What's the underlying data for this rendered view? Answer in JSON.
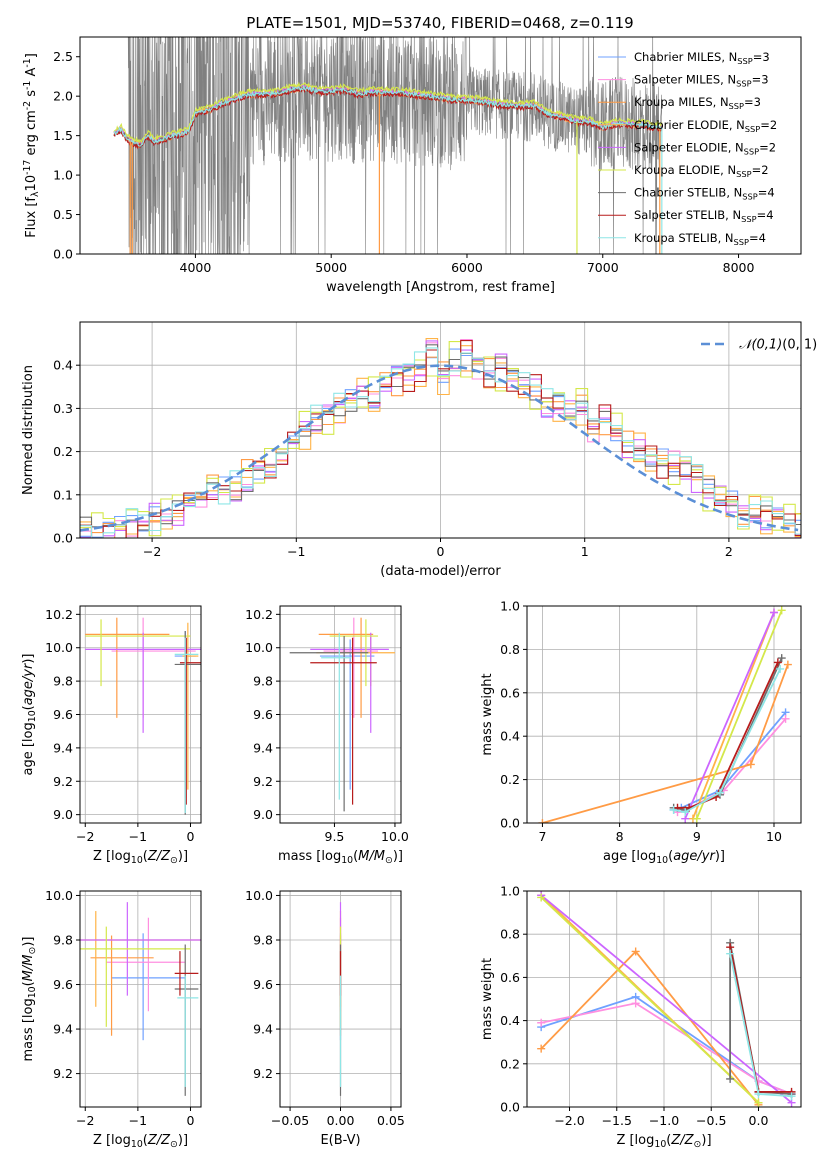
{
  "figure": {
    "title": "PLATE=1501, MJD=53740, FIBERID=0468, z=0.119"
  },
  "model_colors": [
    "#6fa1ff",
    "#ff8fe0",
    "#ff9b45",
    "#ffb347",
    "#cc66ff",
    "#d4e84a",
    "#6e6e6e",
    "#b71c1c",
    "#8ee6e6"
  ],
  "model_labels": [
    "Chabrier MILES, N$_{SSP}$=3",
    "Salpeter MILES, N$_{SSP}$=3",
    "Kroupa MILES, N$_{SSP}$=3",
    "Chabrier ELODIE, N$_{SSP}$=2",
    "Salpeter ELODIE, N$_{SSP}$=2",
    "Kroupa ELODIE, N$_{SSP}$=2",
    "Chabrier STELIB, N$_{SSP}$=4",
    "Salpeter STELIB, N$_{SSP}$=4",
    "Kroupa STELIB, N$_{SSP}$=4"
  ],
  "chart_data": [
    {
      "id": "spectrum",
      "type": "line",
      "xlabel": "wavelength [Angstrom, rest frame]",
      "ylabel": "Flux [f$_\\lambda$10$^{-17}$ erg cm$^{-2}$ s$^{-1}$ A$^{-1}$]",
      "xlim": [
        3150,
        8460
      ],
      "ylim": [
        0,
        2.75
      ],
      "xticks": [
        4000,
        5000,
        6000,
        7000,
        8000
      ],
      "yticks": [
        0.0,
        0.5,
        1.0,
        1.5,
        2.0,
        2.5
      ],
      "grid": false,
      "legend_position": "top-right",
      "series": [
        {
          "name": "Chabrier MILES, N$_{SSP}$=3"
        },
        {
          "name": "Salpeter MILES, N$_{SSP}$=3"
        },
        {
          "name": "Kroupa MILES, N$_{SSP}$=3"
        },
        {
          "name": "Chabrier ELODIE, N$_{SSP}$=2"
        },
        {
          "name": "Salpeter ELODIE, N$_{SSP}$=2"
        },
        {
          "name": "Kroupa ELODIE, N$_{SSP}$=2"
        },
        {
          "name": "Chabrier STELIB, N$_{SSP}$=4"
        },
        {
          "name": "Salpeter STELIB, N$_{SSP}$=4"
        },
        {
          "name": "Kroupa STELIB, N$_{SSP}$=4"
        }
      ],
      "model_curve": {
        "x": [
          3400,
          3450,
          3500,
          3550,
          3600,
          3650,
          3700,
          3750,
          3800,
          3850,
          3900,
          3950,
          4000,
          4100,
          4200,
          4300,
          4400,
          4500,
          4600,
          4700,
          4800,
          4900,
          5000,
          5100,
          5200,
          5300,
          5400,
          5500,
          5600,
          5700,
          5800,
          5900,
          6000,
          6100,
          6200,
          6300,
          6400,
          6500,
          6600,
          6700,
          6800,
          6900,
          7000,
          7100,
          7200,
          7300,
          7400
        ],
        "y": [
          1.52,
          1.58,
          1.45,
          1.4,
          1.38,
          1.5,
          1.42,
          1.45,
          1.47,
          1.5,
          1.52,
          1.55,
          1.78,
          1.82,
          1.9,
          1.97,
          2.02,
          2.02,
          2.03,
          2.08,
          2.1,
          2.06,
          2.06,
          2.08,
          2.02,
          2.05,
          2.04,
          2.04,
          2.02,
          2.0,
          1.98,
          1.95,
          1.95,
          1.93,
          1.9,
          1.88,
          1.87,
          1.88,
          1.77,
          1.73,
          1.68,
          1.67,
          1.6,
          1.65,
          1.64,
          1.63,
          1.6
        ]
      },
      "observed_spectrum": {
        "x_range": [
          3500,
          7440
        ],
        "baseline": "model_curve",
        "noisy_below_angstrom": 4400,
        "high_noise_ceiling": 2.75
      }
    },
    {
      "id": "residuals",
      "type": "step",
      "xlabel": "(data-model)/error",
      "ylabel": "Normed distribution",
      "xlim": [
        -2.5,
        2.5
      ],
      "ylim": [
        0,
        0.5
      ],
      "xticks": [
        -2,
        -1,
        0,
        1,
        2
      ],
      "yticks": [
        0.0,
        0.1,
        0.2,
        0.3,
        0.4
      ],
      "grid": true,
      "legend_position": "top-right",
      "reference": {
        "name": "$\\mathcal{N}(0,1)$",
        "style": "dashed",
        "color": "#5b8fd6"
      },
      "bin_width": 0.1,
      "base_values": [
        0.02,
        0.021,
        0.025,
        0.03,
        0.035,
        0.035,
        0.045,
        0.055,
        0.065,
        0.075,
        0.09,
        0.11,
        0.115,
        0.12,
        0.14,
        0.15,
        0.16,
        0.2,
        0.22,
        0.25,
        0.28,
        0.29,
        0.3,
        0.32,
        0.34,
        0.33,
        0.36,
        0.37,
        0.38,
        0.4,
        0.42,
        0.38,
        0.41,
        0.42,
        0.4,
        0.38,
        0.39,
        0.37,
        0.35,
        0.34,
        0.31,
        0.32,
        0.28,
        0.3,
        0.26,
        0.27,
        0.25,
        0.22,
        0.21,
        0.2,
        0.18,
        0.17,
        0.16,
        0.14,
        0.11,
        0.1,
        0.08,
        0.06,
        0.06,
        0.05,
        0.06,
        0.04,
        0.03
      ]
    },
    {
      "id": "age_vs_Z",
      "type": "errorbar",
      "xlabel": "Z [log$_{10}$($Z/Z_\\odot$)]",
      "ylabel": "age  [log$_{10}$($age/yr$)]",
      "xlim": [
        -2.1,
        0.2
      ],
      "ylim": [
        8.95,
        10.25
      ],
      "xticks": [
        -2,
        -1,
        0
      ],
      "yticks": [
        9.0,
        9.2,
        9.4,
        9.6,
        9.8,
        10.0,
        10.2
      ],
      "grid": true,
      "points": [
        {
          "series": 0,
          "x": -0.1,
          "y": 9.95,
          "xerr": [
            0.2,
            0.2
          ],
          "yerr": [
            0.85,
            0.15
          ]
        },
        {
          "series": 1,
          "x": -0.9,
          "y": 9.98,
          "xerr": [
            0.6,
            1.0
          ],
          "yerr": [
            0.4,
            0.2
          ]
        },
        {
          "series": 2,
          "x": -1.4,
          "y": 10.08,
          "xerr": [
            0.6,
            1.0
          ],
          "yerr": [
            0.5,
            0.1
          ]
        },
        {
          "series": 3,
          "x": -0.05,
          "y": 9.95,
          "xerr": [
            0.1,
            0.2
          ],
          "yerr": [
            0.8,
            0.2
          ]
        },
        {
          "series": 4,
          "x": -0.9,
          "y": 9.99,
          "xerr": [
            1.1,
            1.2
          ],
          "yerr": [
            0.5,
            0.1
          ]
        },
        {
          "series": 5,
          "x": -1.7,
          "y": 10.07,
          "xerr": [
            0.3,
            1.7
          ],
          "yerr": [
            0.3,
            0.1
          ]
        },
        {
          "series": 6,
          "x": -0.1,
          "y": 9.9,
          "xerr": [
            0.2,
            0.3
          ],
          "yerr": [
            0.9,
            0.2
          ]
        },
        {
          "series": 7,
          "x": -0.08,
          "y": 9.91,
          "xerr": [
            0.12,
            0.3
          ],
          "yerr": [
            0.85,
            0.15
          ]
        },
        {
          "series": 8,
          "x": -0.1,
          "y": 9.96,
          "xerr": [
            0.2,
            0.25
          ],
          "yerr": [
            0.95,
            0.1
          ]
        }
      ]
    },
    {
      "id": "age_vs_mass",
      "type": "errorbar",
      "xlabel": "mass [log$_{10}$($M/M_\\odot$)]",
      "ylabel": "",
      "xlim": [
        9.05,
        10.05
      ],
      "ylim": [
        8.95,
        10.25
      ],
      "xticks": [
        9.5,
        10.0
      ],
      "yticks": [
        9.0,
        9.2,
        9.4,
        9.6,
        9.8,
        10.0,
        10.2
      ],
      "grid": true,
      "points": [
        {
          "series": 0,
          "x": 9.63,
          "y": 9.95,
          "xerr": [
            0.25,
            0.2
          ],
          "yerr": [
            0.8,
            0.1
          ]
        },
        {
          "series": 1,
          "x": 9.66,
          "y": 9.98,
          "xerr": [
            0.25,
            0.2
          ],
          "yerr": [
            0.4,
            0.2
          ]
        },
        {
          "series": 2,
          "x": 9.72,
          "y": 10.08,
          "xerr": [
            0.35,
            0.1
          ],
          "yerr": [
            0.5,
            0.1
          ]
        },
        {
          "series": 3,
          "x": 9.8,
          "y": 9.97,
          "xerr": [
            0.45,
            0.2
          ],
          "yerr": [
            0.2,
            0.1
          ]
        },
        {
          "series": 4,
          "x": 9.8,
          "y": 9.99,
          "xerr": [
            0.5,
            0.15
          ],
          "yerr": [
            0.5,
            0.1
          ]
        },
        {
          "series": 5,
          "x": 9.76,
          "y": 10.07,
          "xerr": [
            0.3,
            0.1
          ],
          "yerr": [
            0.3,
            0.1
          ]
        },
        {
          "series": 6,
          "x": 9.58,
          "y": 9.97,
          "xerr": [
            0.45,
            0.2
          ],
          "yerr": [
            0.95,
            0.1
          ]
        },
        {
          "series": 7,
          "x": 9.65,
          "y": 9.91,
          "xerr": [
            0.35,
            0.2
          ],
          "yerr": [
            0.85,
            0.15
          ]
        },
        {
          "series": 8,
          "x": 9.54,
          "y": 9.94,
          "xerr": [
            0.15,
            0.1
          ],
          "yerr": [
            0.85,
            0.15
          ]
        }
      ]
    },
    {
      "id": "weight_vs_age",
      "type": "line",
      "xlabel": "age  [log$_{10}$($age/yr$)]",
      "ylabel": "mass weight",
      "xlim": [
        6.8,
        10.35
      ],
      "ylim": [
        0,
        1.0
      ],
      "xticks": [
        7,
        8,
        9,
        10
      ],
      "yticks": [
        0.0,
        0.2,
        0.4,
        0.6,
        0.8,
        1.0
      ],
      "grid": true,
      "series": [
        {
          "series": 0,
          "x": [
            8.7,
            8.8,
            9.3,
            10.15
          ],
          "y": [
            0.06,
            0.07,
            0.15,
            0.51
          ]
        },
        {
          "series": 1,
          "x": [
            8.75,
            8.85,
            9.35,
            10.15
          ],
          "y": [
            0.05,
            0.06,
            0.15,
            0.48
          ]
        },
        {
          "series": 2,
          "x": [
            7.0,
            9.7,
            10.18
          ],
          "y": [
            0.0,
            0.27,
            0.73
          ]
        },
        {
          "series": 3,
          "x": [
            8.95,
            10.0
          ],
          "y": [
            0.02,
            0.97
          ]
        },
        {
          "series": 4,
          "x": [
            8.85,
            10.0
          ],
          "y": [
            0.02,
            0.97
          ]
        },
        {
          "series": 5,
          "x": [
            9.0,
            10.1
          ],
          "y": [
            0.02,
            0.98
          ]
        },
        {
          "series": 6,
          "x": [
            8.7,
            8.85,
            9.3,
            10.1
          ],
          "y": [
            0.07,
            0.06,
            0.13,
            0.76
          ]
        },
        {
          "series": 7,
          "x": [
            8.75,
            8.9,
            9.25,
            10.05
          ],
          "y": [
            0.07,
            0.07,
            0.12,
            0.74
          ]
        },
        {
          "series": 8,
          "x": [
            8.7,
            8.85,
            9.3,
            10.08
          ],
          "y": [
            0.06,
            0.05,
            0.14,
            0.71
          ]
        }
      ]
    },
    {
      "id": "mass_vs_Z",
      "type": "errorbar",
      "xlabel": "Z [log$_{10}$($Z/Z_\\odot$)]",
      "ylabel": "mass [log$_{10}$($M/M_\\odot$)]",
      "xlim": [
        -2.1,
        0.2
      ],
      "ylim": [
        9.05,
        10.02
      ],
      "xticks": [
        -2,
        -1,
        0
      ],
      "yticks": [
        9.2,
        9.4,
        9.6,
        9.8,
        10.0
      ],
      "grid": true,
      "points": [
        {
          "series": 0,
          "x": -0.9,
          "y": 9.63,
          "xerr": [
            0.6,
            0.8
          ],
          "yerr": [
            0.28,
            0.2
          ]
        },
        {
          "series": 1,
          "x": -0.8,
          "y": 9.7,
          "xerr": [
            0.8,
            0.7
          ],
          "yerr": [
            0.22,
            0.2
          ]
        },
        {
          "series": 2,
          "x": -1.5,
          "y": 9.72,
          "xerr": [
            0.4,
            0.8
          ],
          "yerr": [
            0.35,
            0.1
          ]
        },
        {
          "series": 3,
          "x": -1.8,
          "y": 9.8,
          "xerr": [
            0.3,
            2.0
          ],
          "yerr": [
            0.3,
            0.13
          ]
        },
        {
          "series": 4,
          "x": -1.2,
          "y": 9.8,
          "xerr": [
            0.9,
            1.4
          ],
          "yerr": [
            0.25,
            0.17
          ]
        },
        {
          "series": 5,
          "x": -1.6,
          "y": 9.76,
          "xerr": [
            0.5,
            1.6
          ],
          "yerr": [
            0.35,
            0.1
          ]
        },
        {
          "series": 6,
          "x": -0.1,
          "y": 9.58,
          "xerr": [
            0.2,
            0.25
          ],
          "yerr": [
            0.48,
            0.2
          ]
        },
        {
          "series": 7,
          "x": -0.2,
          "y": 9.65,
          "xerr": [
            0.1,
            0.35
          ],
          "yerr": [
            0.1,
            0.1
          ]
        },
        {
          "series": 8,
          "x": -0.1,
          "y": 9.54,
          "xerr": [
            0.15,
            0.25
          ],
          "yerr": [
            0.4,
            0.1
          ]
        }
      ]
    },
    {
      "id": "mass_vs_EBV",
      "type": "errorbar",
      "xlabel": "E(B-V)",
      "ylabel": "",
      "xlim": [
        -0.06,
        0.06
      ],
      "ylim": [
        9.05,
        10.02
      ],
      "xticks": [
        -0.05,
        0.0,
        0.05
      ],
      "yticks": [
        9.2,
        9.4,
        9.6,
        9.8,
        10.0
      ],
      "grid": true,
      "points": [
        {
          "series": 0,
          "x": 0.0,
          "y": 9.63,
          "xerr": [
            0,
            0
          ],
          "yerr": [
            0.28,
            0.2
          ]
        },
        {
          "series": 1,
          "x": 0.0,
          "y": 9.7,
          "xerr": [
            0,
            0
          ],
          "yerr": [
            0.22,
            0.2
          ]
        },
        {
          "series": 2,
          "x": 0.0,
          "y": 9.72,
          "xerr": [
            0,
            0
          ],
          "yerr": [
            0.35,
            0.1
          ]
        },
        {
          "series": 3,
          "x": 0.0,
          "y": 9.8,
          "xerr": [
            0,
            0
          ],
          "yerr": [
            0.3,
            0.13
          ]
        },
        {
          "series": 4,
          "x": 0.0,
          "y": 9.8,
          "xerr": [
            0,
            0
          ],
          "yerr": [
            0.25,
            0.17
          ]
        },
        {
          "series": 5,
          "x": 0.0,
          "y": 9.76,
          "xerr": [
            0,
            0
          ],
          "yerr": [
            0.35,
            0.1
          ]
        },
        {
          "series": 6,
          "x": 0.0,
          "y": 9.58,
          "xerr": [
            0,
            0
          ],
          "yerr": [
            0.48,
            0.2
          ]
        },
        {
          "series": 7,
          "x": 0.0,
          "y": 9.65,
          "xerr": [
            0,
            0
          ],
          "yerr": [
            0.1,
            0.1
          ]
        },
        {
          "series": 8,
          "x": 0.0,
          "y": 9.54,
          "xerr": [
            0,
            0
          ],
          "yerr": [
            0.4,
            0.1
          ]
        }
      ]
    },
    {
      "id": "weight_vs_Z",
      "type": "line",
      "xlabel": "Z [log$_{10}$($Z/Z_\\odot$)]",
      "ylabel": "mass weight",
      "xlim": [
        -2.45,
        0.45
      ],
      "ylim": [
        0,
        1.0
      ],
      "xticks": [
        -2.0,
        -1.5,
        -1.0,
        -0.5,
        0.0
      ],
      "yticks": [
        0.0,
        0.2,
        0.4,
        0.6,
        0.8,
        1.0
      ],
      "grid": true,
      "series": [
        {
          "series": 0,
          "x": [
            -2.3,
            -1.3,
            0.0,
            0.35
          ],
          "y": [
            0.37,
            0.51,
            0.12,
            0.06
          ]
        },
        {
          "series": 1,
          "x": [
            -2.3,
            -1.3,
            0.0,
            0.35
          ],
          "y": [
            0.39,
            0.48,
            0.12,
            0.06
          ]
        },
        {
          "series": 2,
          "x": [
            -2.3,
            -1.3,
            0.0
          ],
          "y": [
            0.27,
            0.72,
            0.01
          ]
        },
        {
          "series": 3,
          "x": [
            -2.3,
            0.0
          ],
          "y": [
            0.98,
            0.02
          ]
        },
        {
          "series": 4,
          "x": [
            -2.3,
            0.35
          ],
          "y": [
            0.98,
            0.02
          ]
        },
        {
          "series": 5,
          "x": [
            -2.3,
            0.0
          ],
          "y": [
            0.97,
            0.02
          ]
        },
        {
          "series": 6,
          "x": [
            -0.3,
            -0.3,
            0.0,
            0.35
          ],
          "y": [
            0.13,
            0.76,
            0.07,
            0.06
          ]
        },
        {
          "series": 7,
          "x": [
            -0.3,
            0.0,
            0.35
          ],
          "y": [
            0.74,
            0.07,
            0.07
          ]
        },
        {
          "series": 8,
          "x": [
            -0.3,
            0.0,
            0.35
          ],
          "y": [
            0.71,
            0.06,
            0.05
          ]
        }
      ]
    }
  ]
}
